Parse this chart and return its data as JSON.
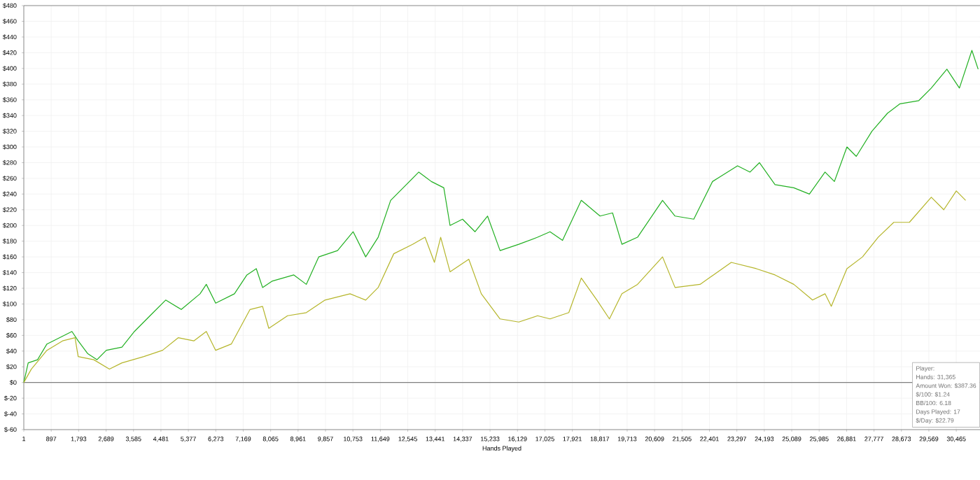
{
  "chart_data": {
    "type": "line",
    "xlabel": "Hands Played",
    "xlim": [
      1,
      31240
    ],
    "ylim": [
      -60,
      480
    ],
    "xticks": [
      1,
      {
        "value": 897,
        "label": "897"
      },
      {
        "value": 1793,
        "label": "1,793"
      },
      {
        "value": 2689,
        "label": "2,689"
      },
      {
        "value": 3585,
        "label": "3,585"
      },
      {
        "value": 4481,
        "label": "4,481"
      },
      {
        "value": 5377,
        "label": "5,377"
      },
      {
        "value": 6273,
        "label": "6,273"
      },
      {
        "value": 7169,
        "label": "7,169"
      },
      {
        "value": 8065,
        "label": "8,065"
      },
      {
        "value": 8961,
        "label": "8,961"
      },
      {
        "value": 9857,
        "label": "9,857"
      },
      {
        "value": 10753,
        "label": "10,753"
      },
      {
        "value": 11649,
        "label": "11,649"
      },
      {
        "value": 12545,
        "label": "12,545"
      },
      {
        "value": 13441,
        "label": "13,441"
      },
      {
        "value": 14337,
        "label": "14,337"
      },
      {
        "value": 15233,
        "label": "15,233"
      },
      {
        "value": 16129,
        "label": "16,129"
      },
      {
        "value": 17025,
        "label": "17,025"
      },
      {
        "value": 17921,
        "label": "17,921"
      },
      {
        "value": 18817,
        "label": "18,817"
      },
      {
        "value": 19713,
        "label": "19,713"
      },
      {
        "value": 20609,
        "label": "20,609"
      },
      {
        "value": 21505,
        "label": "21,505"
      },
      {
        "value": 22401,
        "label": "22,401"
      },
      {
        "value": 23297,
        "label": "23,297"
      },
      {
        "value": 24193,
        "label": "24,193"
      },
      {
        "value": 25089,
        "label": "25,089"
      },
      {
        "value": 25985,
        "label": "25,985"
      },
      {
        "value": 26881,
        "label": "26,881"
      },
      {
        "value": 27777,
        "label": "27,777"
      },
      {
        "value": 28673,
        "label": "28,673"
      },
      {
        "value": 29569,
        "label": "29,569"
      },
      {
        "value": 30465,
        "label": "30,465"
      }
    ],
    "yticks": [
      {
        "value": -60,
        "label": "$-60"
      },
      {
        "value": -40,
        "label": "$-40"
      },
      {
        "value": -20,
        "label": "$-20"
      },
      {
        "value": 0,
        "label": "$0"
      },
      {
        "value": 20,
        "label": "$20"
      },
      {
        "value": 40,
        "label": "$40"
      },
      {
        "value": 60,
        "label": "$60"
      },
      {
        "value": 80,
        "label": "$80"
      },
      {
        "value": 100,
        "label": "$100"
      },
      {
        "value": 120,
        "label": "$120"
      },
      {
        "value": 140,
        "label": "$140"
      },
      {
        "value": 160,
        "label": "$160"
      },
      {
        "value": 180,
        "label": "$180"
      },
      {
        "value": 200,
        "label": "$200"
      },
      {
        "value": 220,
        "label": "$220"
      },
      {
        "value": 240,
        "label": "$240"
      },
      {
        "value": 260,
        "label": "$260"
      },
      {
        "value": 280,
        "label": "$280"
      },
      {
        "value": 300,
        "label": "$300"
      },
      {
        "value": 320,
        "label": "$320"
      },
      {
        "value": 340,
        "label": "$340"
      },
      {
        "value": 360,
        "label": "$360"
      },
      {
        "value": 380,
        "label": "$380"
      },
      {
        "value": 400,
        "label": "$400"
      },
      {
        "value": 420,
        "label": "$420"
      },
      {
        "value": 440,
        "label": "$440"
      },
      {
        "value": 460,
        "label": "$460"
      },
      {
        "value": 480,
        "label": "$480"
      }
    ],
    "grid": true,
    "marker": "none",
    "line_style": "solid",
    "ref_lines": [
      {
        "axis": "y",
        "value": 0,
        "color": "#808080",
        "line_style": "solid"
      }
    ],
    "annotations": [
      "Player:",
      "Hands: 31,365",
      "Amount Won: $387.36",
      "$/100: $1.24",
      "BB/100: 6.18",
      "Days Played: 17",
      "$/Day: $22.79"
    ],
    "series": [
      {
        "color": "#22b022",
        "x": [
          1,
          144,
          450,
          756,
          1165,
          1573,
          1777,
          2084,
          2390,
          2696,
          3207,
          3615,
          4125,
          4636,
          5146,
          5759,
          5963,
          6269,
          6882,
          7290,
          7596,
          7801,
          8107,
          8822,
          9230,
          9638,
          10251,
          10761,
          11170,
          11578,
          11986,
          12395,
          12905,
          13314,
          13722,
          13926,
          14334,
          14743,
          15151,
          15560,
          16172,
          16785,
          17193,
          17601,
          18214,
          18826,
          19235,
          19541,
          20051,
          20868,
          21277,
          21889,
          22502,
          23318,
          23727,
          24033,
          24543,
          25156,
          25666,
          26177,
          26483,
          26892,
          27198,
          27708,
          28219,
          28627,
          29240,
          29648,
          30158,
          30567,
          30975,
          31179
        ],
        "values": [
          0,
          25,
          29,
          49,
          57,
          65,
          53,
          37,
          29,
          41,
          45,
          65,
          85,
          105,
          93,
          113,
          125,
          101,
          113,
          137,
          145,
          121,
          129,
          137,
          125,
          160,
          168,
          192,
          160,
          185,
          232,
          248,
          268,
          256,
          248,
          200,
          208,
          192,
          212,
          168,
          176,
          185,
          192,
          181,
          232,
          212,
          216,
          176,
          185,
          232,
          212,
          208,
          256,
          276,
          268,
          280,
          252,
          248,
          240,
          268,
          256,
          300,
          288,
          320,
          343,
          355,
          359,
          375,
          399,
          375,
          423,
          399
        ]
      },
      {
        "color": "#b5b52a",
        "x": [
          1,
          246,
          756,
          1267,
          1675,
          1777,
          2288,
          2798,
          3207,
          3921,
          4534,
          5044,
          5555,
          5963,
          6269,
          6780,
          7392,
          7801,
          8005,
          8617,
          9230,
          9842,
          10659,
          11170,
          11578,
          12088,
          12701,
          13109,
          13416,
          13620,
          13926,
          14539,
          14947,
          15560,
          16172,
          16785,
          17193,
          17806,
          18214,
          18724,
          19133,
          19541,
          20051,
          20868,
          21277,
          22093,
          23114,
          23931,
          24543,
          25156,
          25769,
          26177,
          26381,
          26892,
          27402,
          27912,
          28423,
          28933,
          29648,
          30056,
          30465,
          30771
        ],
        "values": [
          0,
          17,
          41,
          53,
          57,
          33,
          29,
          17,
          25,
          33,
          41,
          57,
          53,
          65,
          41,
          49,
          93,
          97,
          69,
          85,
          89,
          105,
          113,
          105,
          121,
          164,
          176,
          185,
          153,
          185,
          141,
          157,
          113,
          81,
          77,
          85,
          81,
          89,
          133,
          105,
          81,
          113,
          125,
          160,
          121,
          125,
          153,
          145,
          137,
          125,
          105,
          113,
          97,
          145,
          160,
          185,
          204,
          204,
          236,
          220,
          244,
          232
        ]
      }
    ]
  }
}
